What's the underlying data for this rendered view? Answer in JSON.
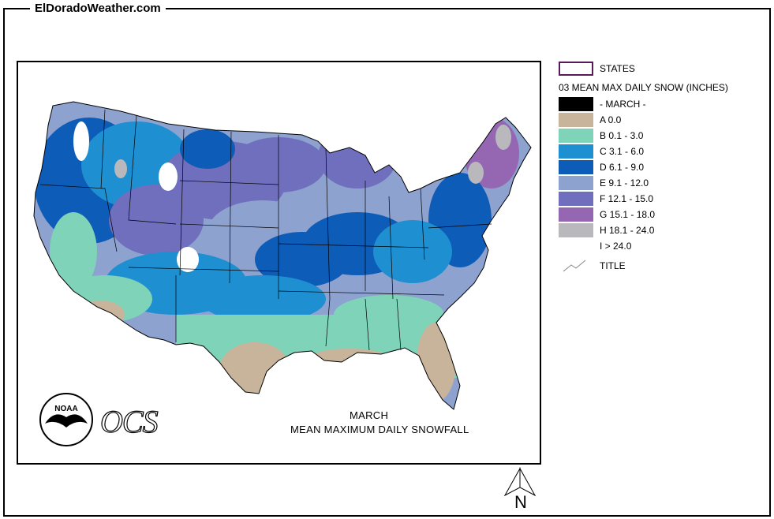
{
  "site": {
    "title": "ElDoradoWeather.com"
  },
  "legend": {
    "states_label": "STATES",
    "heading": "03 MEAN MAX DAILY SNOW (INCHES)",
    "items": [
      {
        "label": "- MARCH -",
        "color": "#000000"
      },
      {
        "label": "A 0.0",
        "color": "#c8b49a"
      },
      {
        "label": "B 0.1 - 3.0",
        "color": "#7fd3b8"
      },
      {
        "label": "C 3.1 - 6.0",
        "color": "#1e8fd0"
      },
      {
        "label": "D 6.1 - 9.0",
        "color": "#0d5cb8"
      },
      {
        "label": "E 9.1 - 12.0",
        "color": "#8ea2cf"
      },
      {
        "label": "F 12.1 - 15.0",
        "color": "#6f6fbd"
      },
      {
        "label": "G 15.1 - 18.0",
        "color": "#9566b2"
      },
      {
        "label": "H 18.1 - 24.0",
        "color": "#b9b9bd"
      },
      {
        "label": "I > 24.0",
        "color": "#ffffff"
      }
    ],
    "title_label": "TITLE"
  },
  "map": {
    "caption_line1": "MARCH",
    "caption_line2": "MEAN MAXIMUM DAILY SNOWFALL",
    "ocs_text": "OCS",
    "noaa_text": "NOAA"
  },
  "north": {
    "label": "N"
  }
}
